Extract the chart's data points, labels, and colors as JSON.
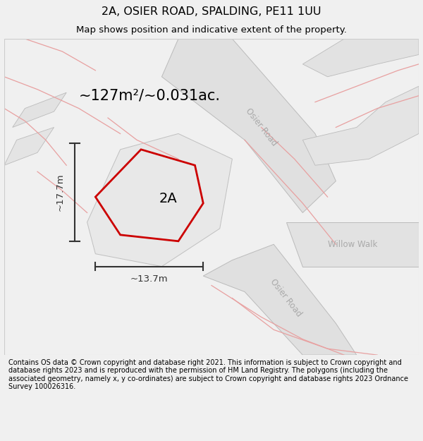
{
  "title": "2A, OSIER ROAD, SPALDING, PE11 1UU",
  "subtitle": "Map shows position and indicative extent of the property.",
  "footer": "Contains OS data © Crown copyright and database right 2021. This information is subject to Crown copyright and database rights 2023 and is reproduced with the permission of HM Land Registry. The polygons (including the associated geometry, namely x, y co-ordinates) are subject to Crown copyright and database rights 2023 Ordnance Survey 100026316.",
  "area_text": "~127m²/~0.031ac.",
  "label_2a": "2A",
  "dim_width": "~13.7m",
  "dim_height": "~17.7m",
  "road_label_1": "Osier Road",
  "road_label_2": "Osier Road",
  "road_label_3": "Willow Walk",
  "bg_color": "#f0f0f0",
  "map_bg": "#fafafa",
  "property_fill": "#e0e0e0",
  "property_edge": "#cc0000",
  "road_fill": "#e0e0e0",
  "road_edge": "#bbbbbb",
  "pink_line": "#e8a0a0",
  "dim_color": "#333333",
  "road_text_color": "#aaaaaa"
}
